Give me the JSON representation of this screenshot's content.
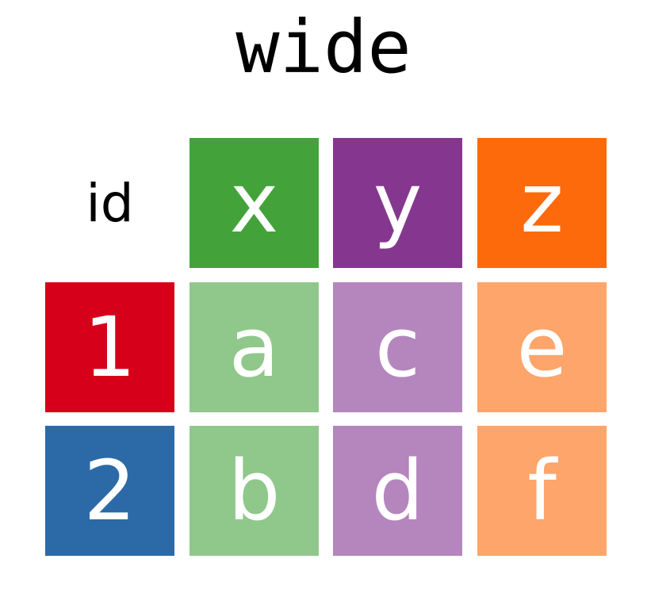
{
  "title": "wide",
  "header": {
    "id_label": "id",
    "columns": [
      {
        "label": "x",
        "color": "#43A33A"
      },
      {
        "label": "y",
        "color": "#85378F"
      },
      {
        "label": "z",
        "color": "#FD6A0C"
      }
    ]
  },
  "rows": [
    {
      "id": "1",
      "id_color": "#D7001A",
      "values": [
        "a",
        "c",
        "e"
      ]
    },
    {
      "id": "2",
      "id_color": "#2C69A7",
      "values": [
        "b",
        "d",
        "f"
      ]
    }
  ],
  "value_colors": [
    "#8FC88A",
    "#B486BD",
    "#FEA56B"
  ]
}
